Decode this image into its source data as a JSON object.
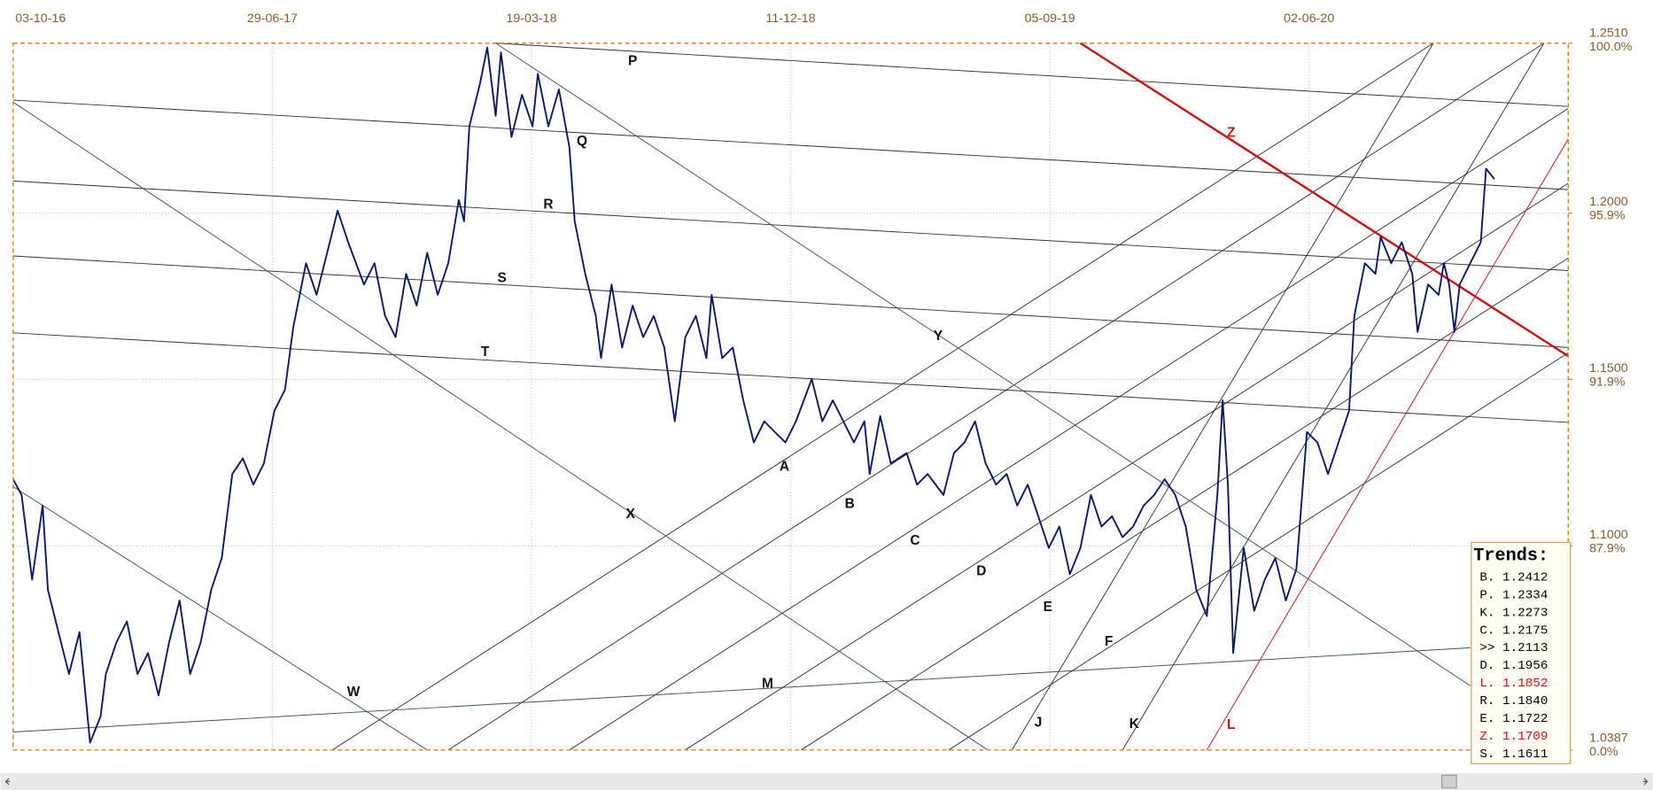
{
  "chart_data": {
    "type": "line",
    "color": "#0a1a66",
    "xlim": [
      0,
      1476
    ],
    "xticks": [
      {
        "value": 0,
        "label": "03-10-16"
      },
      {
        "value": 246,
        "label": "29-06-17"
      },
      {
        "value": 492,
        "label": "19-03-18"
      },
      {
        "value": 738,
        "label": "11-12-18"
      },
      {
        "value": 984,
        "label": "05-09-19"
      },
      {
        "value": 1230,
        "label": "02-06-20"
      }
    ],
    "ylim": [
      1.0387,
      1.251
    ],
    "yticks": [
      {
        "value": 1.251,
        "label": "1.2510"
      },
      {
        "value": 1.2,
        "label": "1.2000"
      },
      {
        "value": 1.15,
        "label": "1.1500"
      },
      {
        "value": 1.1,
        "label": "1.1000"
      },
      {
        "value": 1.0387,
        "label": "1.0387"
      }
    ],
    "ytick_percent": [
      "100.0%",
      "95.9%",
      "91.9%",
      "87.9%",
      "0.0%"
    ],
    "grid": true,
    "x": [
      0,
      8,
      18,
      28,
      33,
      43,
      53,
      63,
      73,
      83,
      88,
      98,
      108,
      118,
      128,
      138,
      148,
      158,
      168,
      178,
      188,
      198,
      208,
      218,
      228,
      238,
      248,
      258,
      266,
      278,
      288,
      298,
      308,
      318,
      333,
      343,
      353,
      363,
      373,
      383,
      393,
      403,
      413,
      423,
      428,
      433,
      443,
      450,
      458,
      463,
      473,
      483,
      493,
      498,
      508,
      518,
      528,
      533,
      543,
      553,
      558,
      568,
      578,
      588,
      598,
      608,
      618,
      628,
      638,
      648,
      658,
      663,
      673,
      683,
      693,
      703,
      713,
      723,
      733,
      743,
      758,
      768,
      778,
      788,
      798,
      808,
      813,
      823,
      833,
      848,
      858,
      868,
      883,
      893,
      903,
      913,
      923,
      933,
      943,
      953,
      963,
      973,
      983,
      993,
      1003,
      1013,
      1023,
      1033,
      1043,
      1053,
      1063,
      1073,
      1083,
      1093,
      1103,
      1113,
      1123,
      1133,
      1143,
      1148,
      1153,
      1158,
      1168,
      1178,
      1188,
      1198,
      1208,
      1218,
      1228,
      1238,
      1248,
      1258,
      1268,
      1273,
      1283,
      1293,
      1298,
      1308,
      1318,
      1328,
      1333,
      1343,
      1353,
      1358,
      1363,
      1368,
      1373,
      1383,
      1393,
      1398,
      1406
    ],
    "values": [
      1.12,
      1.1153,
      1.0899,
      1.1121,
      1.0868,
      1.0741,
      1.0615,
      1.0741,
      1.0409,
      1.0488,
      1.0615,
      1.071,
      1.0773,
      1.0615,
      1.0678,
      1.0551,
      1.071,
      1.0836,
      1.0615,
      1.071,
      1.0868,
      1.0963,
      1.1216,
      1.1263,
      1.1184,
      1.1248,
      1.1406,
      1.1469,
      1.1659,
      1.1849,
      1.1754,
      1.188,
      1.2007,
      1.1912,
      1.1785,
      1.1849,
      1.1691,
      1.1627,
      1.1817,
      1.1722,
      1.188,
      1.1754,
      1.1849,
      1.2039,
      1.1975,
      1.226,
      1.2387,
      1.2497,
      1.2292,
      1.2482,
      1.2228,
      1.2355,
      1.226,
      1.2418,
      1.226,
      1.2371,
      1.2197,
      1.1975,
      1.1817,
      1.1691,
      1.1564,
      1.1785,
      1.1596,
      1.1722,
      1.1627,
      1.1691,
      1.1596,
      1.1374,
      1.1627,
      1.1691,
      1.1564,
      1.1754,
      1.1564,
      1.1596,
      1.1437,
      1.1311,
      1.1374,
      1.1342,
      1.1311,
      1.1374,
      1.1501,
      1.1374,
      1.1437,
      1.1374,
      1.1311,
      1.1374,
      1.1216,
      1.139,
      1.1248,
      1.1279,
      1.1184,
      1.1216,
      1.1153,
      1.1279,
      1.1311,
      1.1374,
      1.1248,
      1.1184,
      1.1216,
      1.1121,
      1.1184,
      1.1089,
      1.0994,
      1.1058,
      1.0915,
      1.0994,
      1.1153,
      1.1058,
      1.1089,
      1.1026,
      1.1058,
      1.1121,
      1.1153,
      1.12,
      1.1153,
      1.1058,
      1.0868,
      1.0789,
      1.1153,
      1.1437,
      1.1184,
      1.0678,
      1.0994,
      1.0805,
      1.0899,
      1.0963,
      1.0836,
      1.0931,
      1.1342,
      1.1311,
      1.1216,
      1.1311,
      1.1406,
      1.1691,
      1.1849,
      1.1817,
      1.1928,
      1.1849,
      1.1912,
      1.1817,
      1.1643,
      1.1785,
      1.1754,
      1.1849,
      1.1785,
      1.1643,
      1.1785,
      1.1849,
      1.1912,
      1.2133,
      1.2102
    ],
    "trendlines": [
      {
        "label": "P",
        "color": "#333333",
        "x1": 458,
        "y1": 1.251,
        "x2": 1476,
        "y2": 1.232
      },
      {
        "label": "Q",
        "color": "#333333",
        "x1": 0,
        "y1": 1.2339,
        "x2": 1476,
        "y2": 1.207
      },
      {
        "label": "R",
        "color": "#333333",
        "x1": 0,
        "y1": 1.2096,
        "x2": 1476,
        "y2": 1.1827
      },
      {
        "label": "S",
        "color": "#333333",
        "x1": 0,
        "y1": 1.1871,
        "x2": 1476,
        "y2": 1.1596
      },
      {
        "label": "T",
        "color": "#333333",
        "x1": 0,
        "y1": 1.164,
        "x2": 1476,
        "y2": 1.1371
      },
      {
        "label": "A",
        "color": "#333333",
        "x1": 303,
        "y1": 1.0387,
        "x2": 1348,
        "y2": 1.251
      },
      {
        "label": "B",
        "color": "#333333",
        "x1": 413,
        "y1": 1.0387,
        "x2": 1453,
        "y2": 1.251
      },
      {
        "label": "C",
        "color": "#333333",
        "x1": 528,
        "y1": 1.0387,
        "x2": 1476,
        "y2": 1.2314
      },
      {
        "label": "D",
        "color": "#333333",
        "x1": 638,
        "y1": 1.0387,
        "x2": 1476,
        "y2": 1.2089
      },
      {
        "label": "E",
        "color": "#333333",
        "x1": 748,
        "y1": 1.0387,
        "x2": 1476,
        "y2": 1.1865
      },
      {
        "label": "F",
        "color": "#333333",
        "x1": 888,
        "y1": 1.0387,
        "x2": 1476,
        "y2": 1.158
      },
      {
        "label": "J",
        "color": "#333333",
        "x1": 948,
        "y1": 1.0387,
        "x2": 1348,
        "y2": 1.251
      },
      {
        "label": "K",
        "color": "#333333",
        "x1": 1053,
        "y1": 1.0387,
        "x2": 1453,
        "y2": 1.251
      },
      {
        "label": "L",
        "color": "#cc1111",
        "x1": 1133,
        "y1": 1.0387,
        "x2": 1476,
        "y2": 1.2222
      },
      {
        "label": "X",
        "color": "#3a5560",
        "x1": 0,
        "y1": 1.2333,
        "x2": 925,
        "y2": 1.0387
      },
      {
        "label": "Y",
        "color": "#3a5560",
        "x1": 458,
        "y1": 1.251,
        "x2": 1383,
        "y2": 1.058
      },
      {
        "label": "W",
        "color": "#3a5560",
        "x1": 0,
        "y1": 1.1178,
        "x2": 393,
        "y2": 1.0387
      },
      {
        "label": "M",
        "color": "#3a5560",
        "x1": 0,
        "y1": 1.0441,
        "x2": 1383,
        "y2": 1.0694
      },
      {
        "label": "Z",
        "color": "#cc1111",
        "x1": 1013,
        "y1": 1.251,
        "x2": 1476,
        "y2": 1.157
      }
    ],
    "trends_box": {
      "title": "Trends:",
      "entries": [
        {
          "text": "B. 1.2412",
          "color": "#000000"
        },
        {
          "text": "P. 1.2334",
          "color": "#000000"
        },
        {
          "text": "K. 1.2273",
          "color": "#000000"
        },
        {
          "text": "C. 1.2175",
          "color": "#000000"
        },
        {
          "text": ">> 1.2113",
          "color": "#000000"
        },
        {
          "text": "D. 1.1956",
          "color": "#000000"
        },
        {
          "text": "L. 1.1852",
          "color": "#cc1111"
        },
        {
          "text": "R. 1.1840",
          "color": "#000000"
        },
        {
          "text": "E. 1.1722",
          "color": "#000000"
        },
        {
          "text": "Z. 1.1709",
          "color": "#cc1111"
        },
        {
          "text": "S. 1.1611",
          "color": "#000000"
        }
      ]
    }
  }
}
